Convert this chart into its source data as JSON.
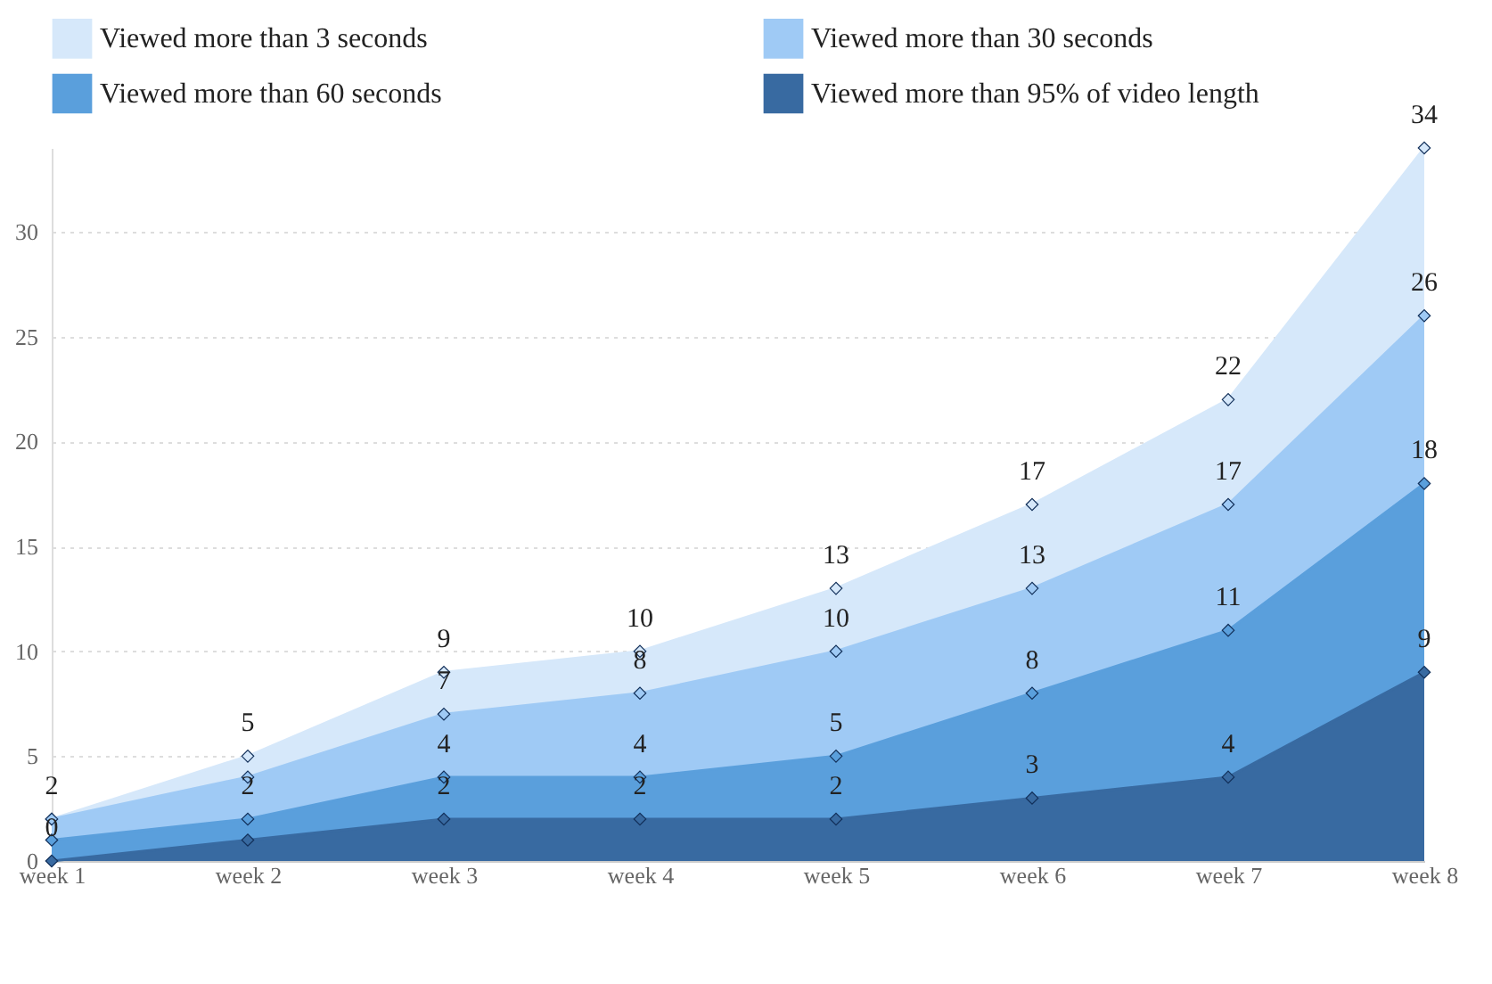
{
  "chart_data": {
    "type": "area",
    "categories": [
      "week 1",
      "week 2",
      "week 3",
      "week 4",
      "week 5",
      "week 6",
      "week 7",
      "week 8"
    ],
    "series": [
      {
        "name": "Viewed more than 3 seconds",
        "color": "#d6e8fa",
        "values": [
          2,
          5,
          9,
          10,
          13,
          17,
          22,
          34
        ],
        "value_labels": [
          "2",
          "5",
          "9",
          "10",
          "13",
          "17",
          "22",
          "34"
        ]
      },
      {
        "name": "Viewed more than 30 seconds",
        "color": "#9fcaf5",
        "values": [
          2,
          4,
          7,
          8,
          10,
          13,
          17,
          26
        ],
        "value_labels": [
          null,
          null,
          "7",
          "8",
          "10",
          "13",
          "17",
          "26"
        ]
      },
      {
        "name": "Viewed more than 60 seconds",
        "color": "#5a9fdc",
        "values": [
          1,
          2,
          4,
          4,
          5,
          8,
          11,
          18
        ],
        "value_labels": [
          null,
          "2",
          "4",
          "4",
          "5",
          "8",
          "11",
          "18"
        ]
      },
      {
        "name": "Viewed more than 95% of video length",
        "color": "#386aa1",
        "values": [
          0,
          1,
          2,
          2,
          2,
          3,
          4,
          9
        ],
        "value_labels": [
          "0",
          null,
          "2",
          "2",
          "2",
          "3",
          "4",
          "9"
        ]
      }
    ],
    "ylim": [
      0,
      34
    ],
    "yticks": [
      0,
      5,
      10,
      15,
      20,
      25,
      30
    ],
    "grid": "y",
    "legend": "top",
    "marker": "diamond"
  }
}
